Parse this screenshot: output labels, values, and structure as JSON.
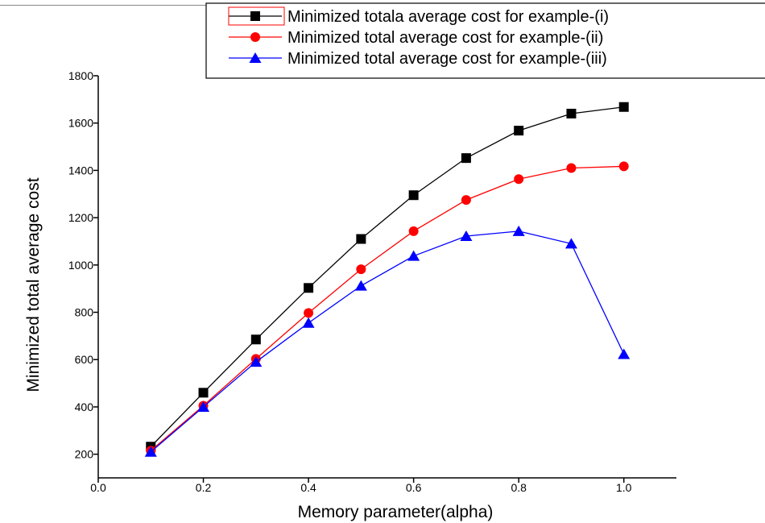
{
  "chart_data": {
    "type": "line",
    "title": "",
    "xlabel": "Memory parameter(alpha)",
    "ylabel": "Minimized total average cost",
    "xlim": [
      0.0,
      1.1
    ],
    "ylim": [
      100,
      1800
    ],
    "x_ticks": [
      0.0,
      0.2,
      0.4,
      0.6,
      0.8,
      1.0
    ],
    "x_tick_labels": [
      "0.0",
      "0.2",
      "0.4",
      "0.6",
      "0.8",
      "1.0"
    ],
    "y_ticks": [
      200,
      400,
      600,
      800,
      1000,
      1200,
      1400,
      1600,
      1800
    ],
    "y_tick_labels": [
      "200",
      "400",
      "600",
      "800",
      "1000",
      "1200",
      "1400",
      "1600",
      "1800"
    ],
    "grid": false,
    "legend_position": "top-right",
    "x": [
      0.1,
      0.2,
      0.3,
      0.4,
      0.5,
      0.6,
      0.7,
      0.8,
      0.9,
      1.0
    ],
    "series": [
      {
        "name": "Minimized totala average cost for example-(i)",
        "color": "#000000",
        "marker": "square",
        "values": [
          232,
          460,
          685,
          903,
          1110,
          1295,
          1452,
          1568,
          1640,
          1668
        ]
      },
      {
        "name": "Minimized total average cost for example-(ii)",
        "color": "#ff0000",
        "marker": "circle",
        "values": [
          215,
          405,
          603,
          797,
          982,
          1143,
          1275,
          1363,
          1410,
          1417
        ]
      },
      {
        "name": "Minimized total average cost for example-(iii)",
        "color": "#0000ff",
        "marker": "triangle",
        "values": [
          210,
          400,
          590,
          755,
          912,
          1038,
          1122,
          1143,
          1090,
          623
        ]
      }
    ]
  }
}
